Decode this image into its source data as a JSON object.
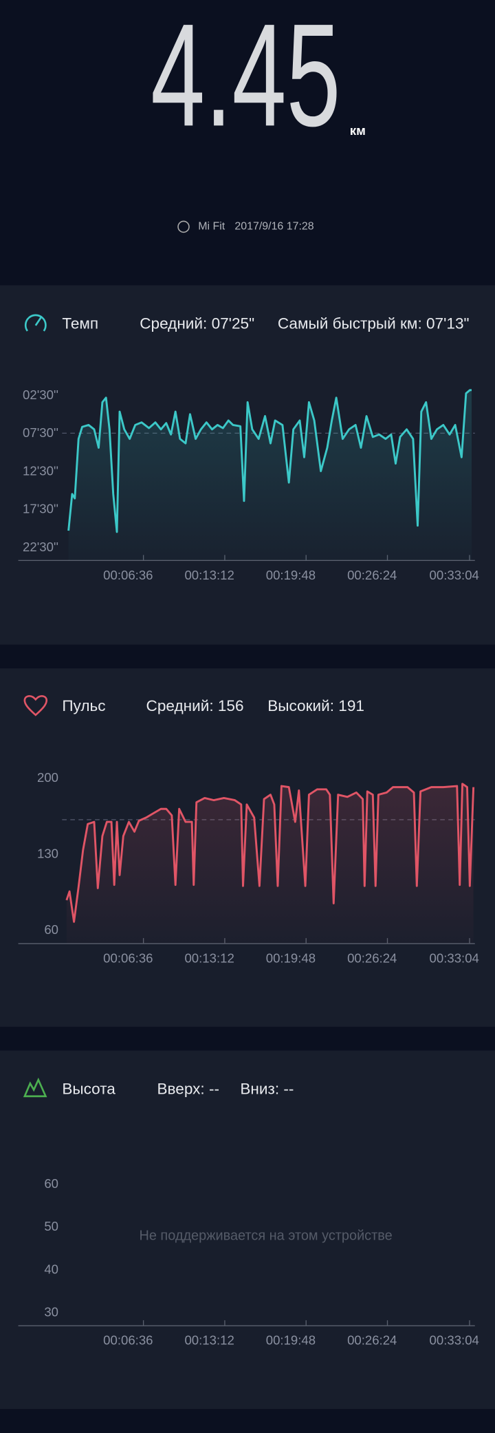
{
  "header": {
    "distance": "4.45",
    "unit": "км",
    "source": "Mi Fit",
    "datetime": "2017/9/16 17:28"
  },
  "chart_data": [
    {
      "type": "line",
      "title": "Темп",
      "stats": [
        "Средний: 07'25\"",
        "Самый быстрый км: 07'13\""
      ],
      "color": "#3cc8c8",
      "xlim": [
        0,
        2010
      ],
      "xticks": [
        {
          "value": 396,
          "label": "00:06:36"
        },
        {
          "value": 792,
          "label": "00:13:12"
        },
        {
          "value": 1188,
          "label": "00:19:48"
        },
        {
          "value": 1584,
          "label": "00:26:24"
        },
        {
          "value": 1984,
          "label": "00:33:04"
        }
      ],
      "ylim": [
        1450,
        100
      ],
      "yticks": [
        {
          "value": 150,
          "label": "02'30''"
        },
        {
          "value": 450,
          "label": "07'30''"
        },
        {
          "value": 750,
          "label": "12'30''"
        },
        {
          "value": 1050,
          "label": "17'30''"
        },
        {
          "value": 1350,
          "label": "22'30''"
        }
      ],
      "reference_line": 445,
      "x": [
        31,
        49,
        62,
        80,
        98,
        129,
        156,
        178,
        196,
        214,
        231,
        249,
        267,
        280,
        303,
        329,
        356,
        387,
        423,
        454,
        481,
        507,
        530,
        552,
        574,
        601,
        623,
        650,
        676,
        703,
        730,
        757,
        783,
        810,
        832,
        868,
        886,
        903,
        926,
        957,
        988,
        1015,
        1037,
        1073,
        1104,
        1126,
        1157,
        1179,
        1202,
        1228,
        1260,
        1291,
        1313,
        1335,
        1366,
        1397,
        1429,
        1455,
        1482,
        1513,
        1544,
        1575,
        1602,
        1624,
        1646,
        1678,
        1709,
        1731,
        1749,
        1772,
        1798,
        1825,
        1856,
        1887,
        1914,
        1945,
        1967,
        1985,
        1994
      ],
      "values": [
        1215,
        925,
        960,
        490,
        395,
        380,
        415,
        560,
        200,
        165,
        415,
        925,
        1225,
        275,
        415,
        490,
        380,
        360,
        405,
        360,
        415,
        365,
        455,
        275,
        490,
        525,
        295,
        490,
        415,
        360,
        415,
        380,
        405,
        345,
        380,
        390,
        980,
        200,
        415,
        490,
        310,
        525,
        345,
        380,
        835,
        415,
        345,
        635,
        200,
        345,
        745,
        560,
        345,
        165,
        490,
        415,
        380,
        560,
        310,
        475,
        455,
        490,
        455,
        685,
        475,
        415,
        490,
        1175,
        275,
        200,
        490,
        415,
        380,
        455,
        380,
        635,
        130,
        105,
        105
      ]
    },
    {
      "type": "line",
      "title": "Пульс",
      "stats": [
        "Средний: 156",
        "Высокий: 191"
      ],
      "color": "#e05566",
      "xlim": [
        0,
        2010
      ],
      "xticks": [
        {
          "value": 396,
          "label": "00:06:36"
        },
        {
          "value": 792,
          "label": "00:13:12"
        },
        {
          "value": 1188,
          "label": "00:19:48"
        },
        {
          "value": 1584,
          "label": "00:26:24"
        },
        {
          "value": 1984,
          "label": "00:33:04"
        }
      ],
      "ylim": [
        48,
        218
      ],
      "yticks": [
        60,
        130,
        200
      ],
      "reference_line": 162,
      "x": [
        22,
        36,
        58,
        80,
        102,
        125,
        156,
        174,
        196,
        218,
        240,
        254,
        267,
        280,
        298,
        325,
        352,
        374,
        409,
        445,
        481,
        507,
        534,
        552,
        570,
        601,
        632,
        641,
        654,
        694,
        739,
        788,
        841,
        872,
        881,
        899,
        935,
        961,
        983,
        1015,
        1033,
        1050,
        1068,
        1104,
        1135,
        1153,
        1184,
        1202,
        1242,
        1286,
        1304,
        1322,
        1344,
        1389,
        1433,
        1464,
        1473,
        1486,
        1513,
        1526,
        1540,
        1580,
        1611,
        1682,
        1713,
        1727,
        1745,
        1798,
        1856,
        1923,
        1936,
        1949,
        1972,
        1985,
        2003
      ],
      "values": [
        88,
        96,
        68,
        100,
        134,
        158,
        160,
        99,
        147,
        160,
        160,
        102,
        160,
        111,
        147,
        160,
        151,
        161,
        164,
        168,
        172,
        172,
        166,
        102,
        172,
        160,
        160,
        102,
        178,
        182,
        180,
        182,
        180,
        176,
        101,
        176,
        164,
        101,
        181,
        185,
        176,
        101,
        193,
        192,
        160,
        189,
        101,
        185,
        190,
        190,
        185,
        85,
        185,
        183,
        187,
        181,
        101,
        188,
        185,
        101,
        185,
        187,
        192,
        192,
        187,
        101,
        188,
        192,
        192,
        193,
        102,
        195,
        192,
        101,
        192
      ]
    },
    {
      "type": "line",
      "title": "Высота",
      "stats": [
        "Вверх: --",
        "Вниз: --"
      ],
      "color": "#4caf50",
      "xlim": [
        0,
        2010
      ],
      "xticks": [
        {
          "value": 396,
          "label": "00:06:36"
        },
        {
          "value": 792,
          "label": "00:13:12"
        },
        {
          "value": 1188,
          "label": "00:19:48"
        },
        {
          "value": 1584,
          "label": "00:26:24"
        },
        {
          "value": 1984,
          "label": "00:33:04"
        }
      ],
      "ylim": [
        27,
        67
      ],
      "yticks": [
        30,
        40,
        50,
        60
      ],
      "message": "Не поддерживается на этом устройстве"
    }
  ]
}
